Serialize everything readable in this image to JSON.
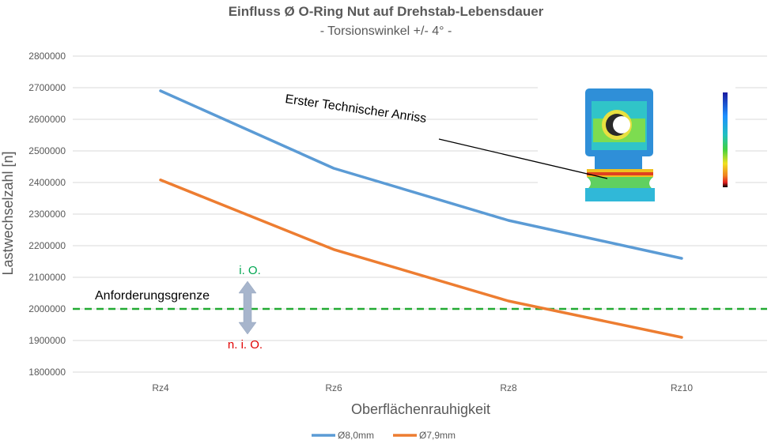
{
  "chart_data": {
    "type": "line",
    "title": "Einfluss Ø O-Ring Nut auf Drehstab-Lebensdauer",
    "subtitle": "- Torsionswinkel +/- 4° -",
    "xlabel": "Oberflächenrauhigkeit",
    "ylabel": "Lastwechselzahl [n]",
    "categories": [
      "Rz4",
      "Rz6",
      "Rz8",
      "Rz10"
    ],
    "ylim": [
      1800000,
      2800000
    ],
    "yticks": [
      "1800000",
      "1900000",
      "2000000",
      "2100000",
      "2200000",
      "2300000",
      "2400000",
      "2500000",
      "2600000",
      "2700000",
      "2800000"
    ],
    "grid": true,
    "legend_position": "bottom",
    "series": [
      {
        "name": "Ø8,0mm",
        "color": "#5b9bd5",
        "values": [
          2690000,
          2445000,
          2280000,
          2160000
        ]
      },
      {
        "name": "Ø7,9mm",
        "color": "#ed7d31",
        "values": [
          2408000,
          2188000,
          2025000,
          1910000
        ]
      }
    ],
    "threshold": {
      "value": 2000000,
      "label": "Anforderungsgrenze",
      "color": "#22aa33"
    },
    "annotations": {
      "ok_label": "i. O.",
      "ok_color": "#00a651",
      "nok_label": "n. i. O.",
      "nok_color": "#e00000",
      "crack_label": "Erster Technischer Anriss",
      "inset_image": "fea-stress-plot-icon"
    }
  }
}
